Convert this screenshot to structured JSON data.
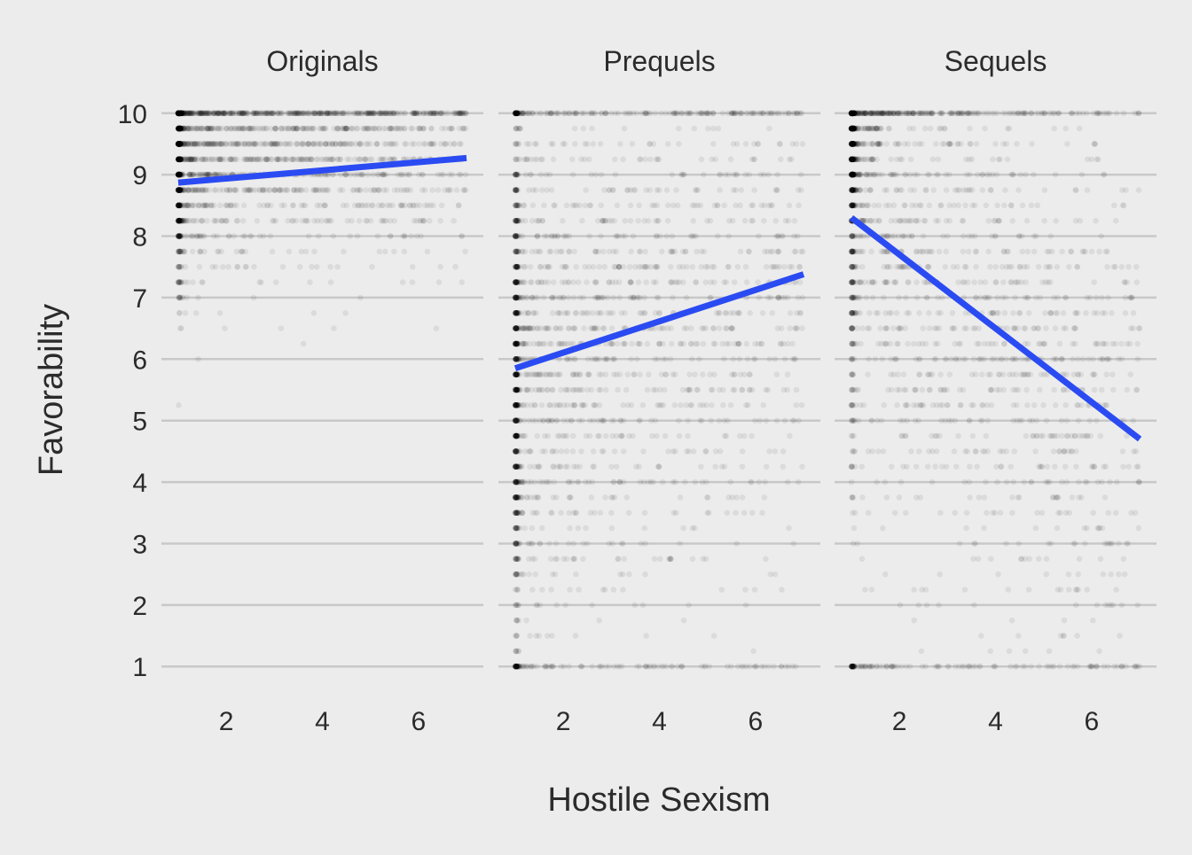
{
  "chart_data": {
    "type": "scatter",
    "facet_by": "Film era",
    "xlabel": "Hostile Sexism",
    "ylabel": "Favorability",
    "xlim": [
      1,
      7
    ],
    "ylim": [
      1,
      10
    ],
    "x_ticks": [
      2,
      4,
      6
    ],
    "y_ticks": [
      1,
      2,
      3,
      4,
      5,
      6,
      7,
      8,
      9,
      10
    ],
    "grid": "horizontal only",
    "point_style": "semi-transparent black points, heavy overplotting",
    "fit_line": "linear regression",
    "fit_color": "#2b4bf2",
    "background_color": "#ececec",
    "gridline_color": "#c8c8c8",
    "panels": [
      {
        "title": "Originals",
        "fit": {
          "x": [
            1,
            7
          ],
          "y": [
            8.87,
            9.27
          ]
        },
        "density_center": {
          "x": 1.5,
          "y": 9.3
        },
        "y_spread": "concentrated 7–10, sparse tail to 1"
      },
      {
        "title": "Prequels",
        "fit": {
          "x": [
            1,
            7
          ],
          "y": [
            5.85,
            7.38
          ]
        },
        "density_center": {
          "x": 2.0,
          "y": 6.5
        },
        "y_spread": "broad 1–10"
      },
      {
        "title": "Sequels",
        "fit": {
          "x": [
            1,
            7
          ],
          "y": [
            8.3,
            4.7
          ]
        },
        "density_center": {
          "x": 1.5,
          "y": 8.5
        },
        "y_spread": "broad 1–10, dense near top-left"
      }
    ]
  }
}
